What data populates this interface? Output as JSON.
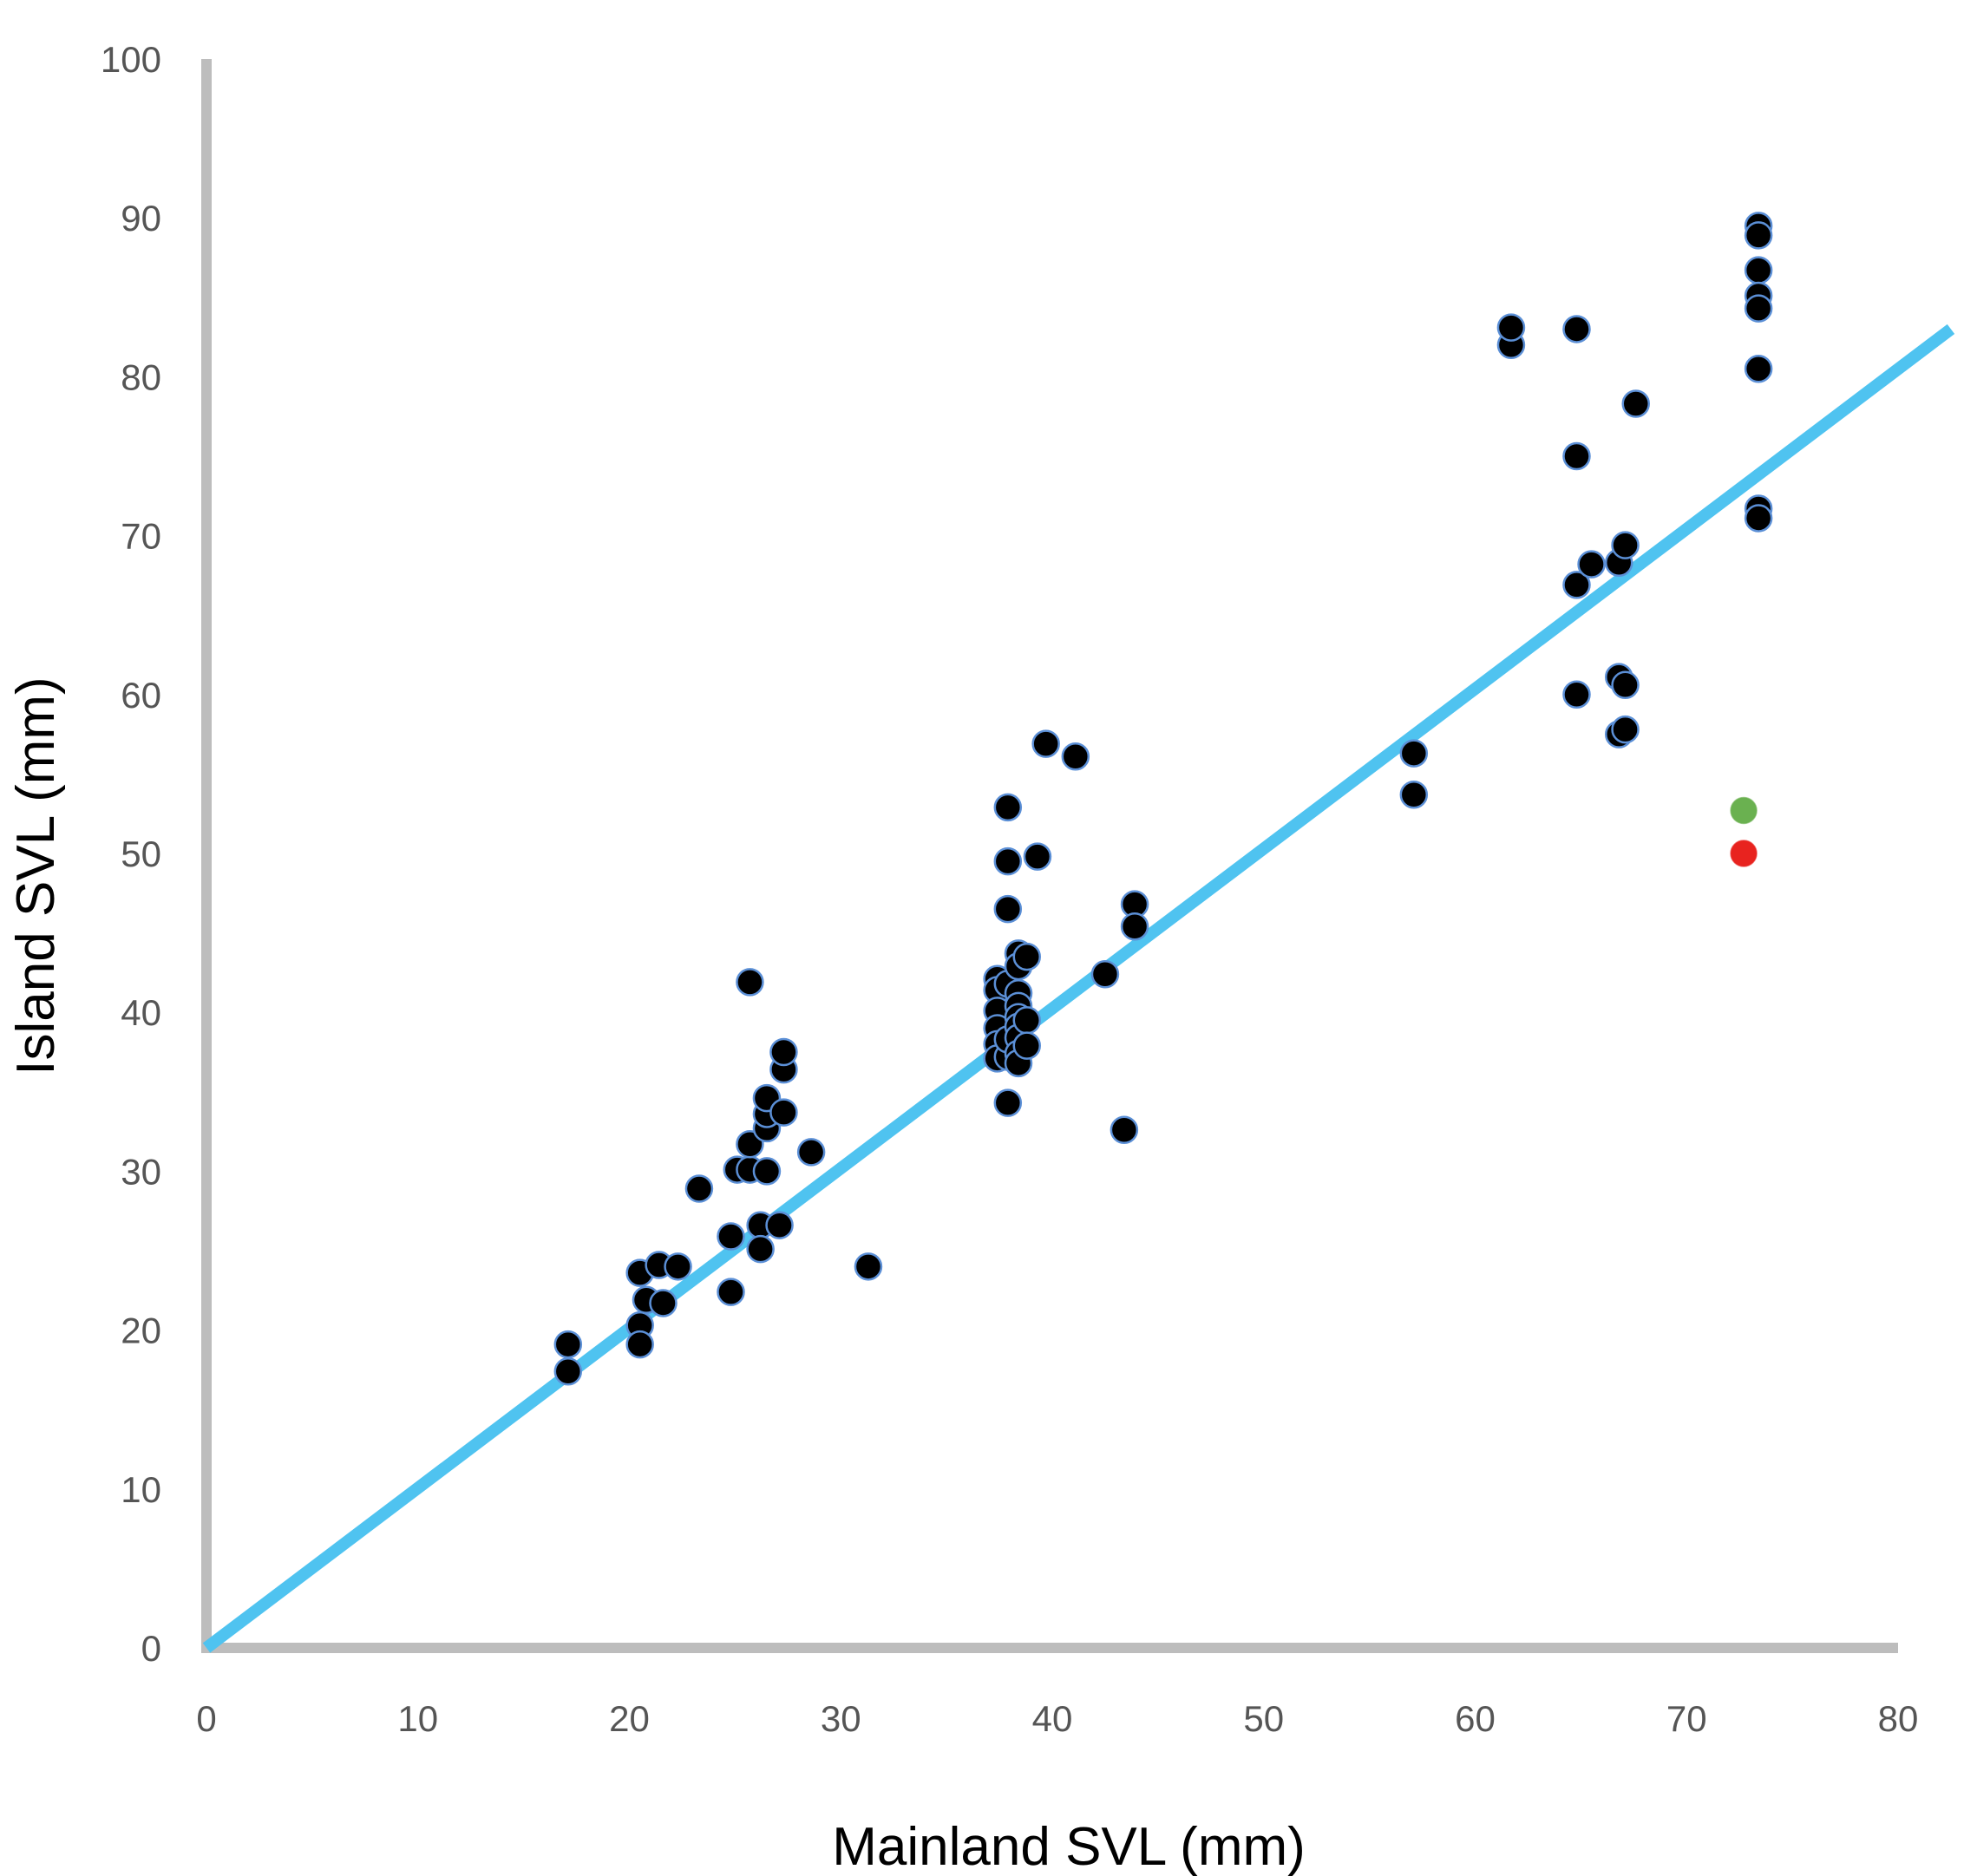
{
  "chart_data": {
    "type": "scatter",
    "title": "",
    "xlabel": "Mainland SVL (mm)",
    "ylabel": "Island SVL (mm)",
    "xlim": [
      0,
      80
    ],
    "ylim": [
      0,
      100
    ],
    "x_ticks": [
      "0",
      "10",
      "20",
      "30",
      "40",
      "50",
      "60",
      "70",
      "80"
    ],
    "y_ticks": [
      "0",
      "10",
      "20",
      "30",
      "40",
      "50",
      "60",
      "70",
      "80",
      "90",
      "100"
    ],
    "grid": false,
    "legend": "none",
    "colors": {
      "axis": "#bdbdbd",
      "line": "#4fc3f0",
      "point_fill": "#000000",
      "point_stroke": "#5b8fd6",
      "highlight_green": "#6ab150",
      "highlight_red": "#e8231f"
    },
    "reference_line": {
      "x": [
        0,
        82.5
      ],
      "y": [
        0,
        83.0
      ]
    },
    "series": [
      {
        "points": [
          [
            17.1,
            19.1
          ],
          [
            17.1,
            17.4
          ],
          [
            20.5,
            23.6
          ],
          [
            20.5,
            20.3
          ],
          [
            20.5,
            19.1
          ],
          [
            20.8,
            21.9
          ],
          [
            21.4,
            24.1
          ],
          [
            21.6,
            21.7
          ],
          [
            22.3,
            24.0
          ],
          [
            23.3,
            28.9
          ],
          [
            24.8,
            22.4
          ],
          [
            24.8,
            25.9
          ],
          [
            25.1,
            30.1
          ],
          [
            25.7,
            30.1
          ],
          [
            25.7,
            31.7
          ],
          [
            25.7,
            41.9
          ],
          [
            26.2,
            26.6
          ],
          [
            26.2,
            25.1
          ],
          [
            26.5,
            30.0
          ],
          [
            26.5,
            32.7
          ],
          [
            26.5,
            33.6
          ],
          [
            26.5,
            34.6
          ],
          [
            27.1,
            26.6
          ],
          [
            27.3,
            33.7
          ],
          [
            27.3,
            36.4
          ],
          [
            27.3,
            37.5
          ],
          [
            28.6,
            31.2
          ],
          [
            31.3,
            24.0
          ],
          [
            37.4,
            42.1
          ],
          [
            37.4,
            41.4
          ],
          [
            37.4,
            40.1
          ],
          [
            37.4,
            39.0
          ],
          [
            37.4,
            38.0
          ],
          [
            37.4,
            37.1
          ],
          [
            37.9,
            52.9
          ],
          [
            37.9,
            49.5
          ],
          [
            37.9,
            46.5
          ],
          [
            37.9,
            34.3
          ],
          [
            37.9,
            37.2
          ],
          [
            37.9,
            38.3
          ],
          [
            37.9,
            41.8
          ],
          [
            38.4,
            43.7
          ],
          [
            38.4,
            42.9
          ],
          [
            38.4,
            41.2
          ],
          [
            38.4,
            40.4
          ],
          [
            38.4,
            39.7
          ],
          [
            38.4,
            39.1
          ],
          [
            38.4,
            38.4
          ],
          [
            38.4,
            37.4
          ],
          [
            38.4,
            36.8
          ],
          [
            38.8,
            43.5
          ],
          [
            38.8,
            39.5
          ],
          [
            38.8,
            37.9
          ],
          [
            39.3,
            49.8
          ],
          [
            39.7,
            56.9
          ],
          [
            41.1,
            56.1
          ],
          [
            42.5,
            42.4
          ],
          [
            43.4,
            32.6
          ],
          [
            43.9,
            46.8
          ],
          [
            43.9,
            45.4
          ],
          [
            57.1,
            56.3
          ],
          [
            57.1,
            53.7
          ],
          [
            61.7,
            82.0
          ],
          [
            61.7,
            83.1
          ],
          [
            64.8,
            83.0
          ],
          [
            64.8,
            75.0
          ],
          [
            64.8,
            66.9
          ],
          [
            64.8,
            60.0
          ],
          [
            65.5,
            68.2
          ],
          [
            66.8,
            68.3
          ],
          [
            66.8,
            61.1
          ],
          [
            66.8,
            57.5
          ],
          [
            67.1,
            69.4
          ],
          [
            67.1,
            60.6
          ],
          [
            67.1,
            57.8
          ],
          [
            67.6,
            78.3
          ],
          [
            73.4,
            89.5
          ],
          [
            73.4,
            88.9
          ],
          [
            73.4,
            86.7
          ],
          [
            73.4,
            85.1
          ],
          [
            73.4,
            84.3
          ],
          [
            73.4,
            80.5
          ],
          [
            73.4,
            71.7
          ],
          [
            73.4,
            71.1
          ]
        ],
        "color": "#000000"
      },
      {
        "points": [
          [
            72.7,
            52.7
          ]
        ],
        "color": "#6ab150"
      },
      {
        "points": [
          [
            72.7,
            50.0
          ]
        ],
        "color": "#e8231f"
      }
    ]
  }
}
